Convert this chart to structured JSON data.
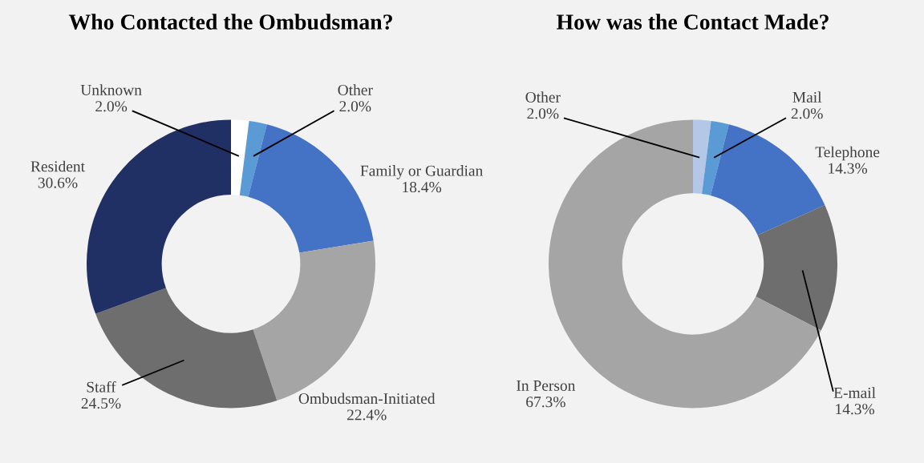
{
  "chart_data": [
    {
      "type": "donut",
      "title": "Who Contacted the Ombudsman?",
      "categories": [
        "Unknown",
        "Other",
        "Family or Guardian",
        "Ombudsman-Initiated",
        "Staff",
        "Resident"
      ],
      "values": [
        2.0,
        2.0,
        18.4,
        22.4,
        24.5,
        30.6
      ],
      "value_labels": [
        "2.0%",
        "2.0%",
        "18.4%",
        "22.4%",
        "24.5%",
        "30.6%"
      ],
      "colors": [
        "#ffffff",
        "#5b9bd5",
        "#4472c4",
        "#a5a5a5",
        "#6e6e6e",
        "#203064"
      ]
    },
    {
      "type": "donut",
      "title": "How was the Contact Made?",
      "categories": [
        "Other",
        "Mail",
        "Telephone",
        "E-mail",
        "In Person"
      ],
      "values": [
        2.0,
        2.0,
        14.3,
        14.3,
        67.3
      ],
      "value_labels": [
        "2.0%",
        "2.0%",
        "14.3%",
        "14.3%",
        "67.3%"
      ],
      "colors": [
        "#b4c7e7",
        "#5b9bd5",
        "#4472c4",
        "#6e6e6e",
        "#a5a5a5"
      ]
    }
  ]
}
